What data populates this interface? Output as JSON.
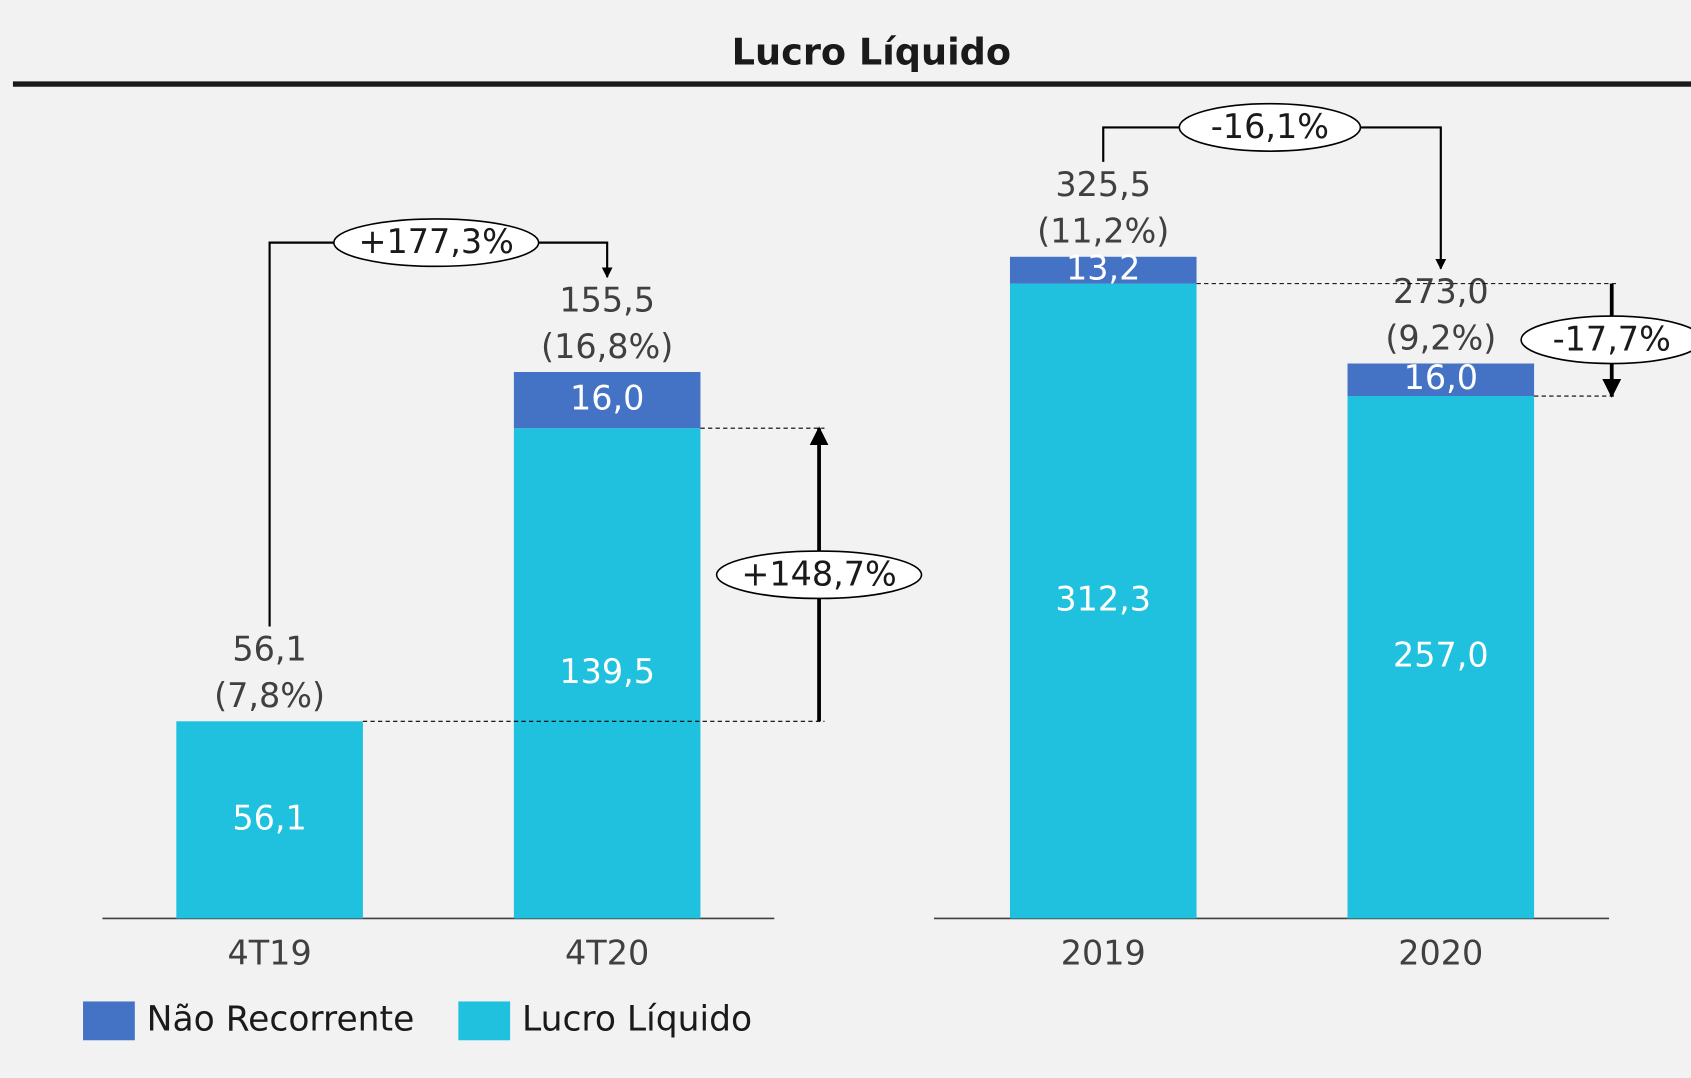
{
  "title": "Lucro Líquido",
  "chart_data": [
    {
      "type": "bar",
      "stacked": true,
      "categories": [
        "4T19",
        "4T20"
      ],
      "series": [
        {
          "name": "Lucro Líquido",
          "color": "#1fc1de",
          "values": [
            56.1,
            139.5
          ],
          "value_labels": [
            "56,1",
            "139,5"
          ]
        },
        {
          "name": "Não Recorrente",
          "color": "#4472c4",
          "values": [
            null,
            16.0
          ],
          "value_labels": [
            null,
            "16,0"
          ]
        }
      ],
      "totals": [
        56.1,
        155.5
      ],
      "total_labels": [
        "56,1",
        "155,5"
      ],
      "margin_labels": [
        "(7,8%)",
        "(16,8%)"
      ],
      "annotations": [
        "+177,3%",
        "+148,7%"
      ],
      "ylim": [
        0,
        200
      ],
      "legend": "bottom-left"
    },
    {
      "type": "bar",
      "stacked": true,
      "categories": [
        "2019",
        "2020"
      ],
      "series": [
        {
          "name": "Lucro Líquido",
          "color": "#1fc1de",
          "values": [
            312.3,
            257.0
          ],
          "value_labels": [
            "312,3",
            "257,0"
          ]
        },
        {
          "name": "Não Recorrente",
          "color": "#4472c4",
          "values": [
            13.2,
            16.0
          ],
          "value_labels": [
            "13,2",
            "16,0"
          ]
        }
      ],
      "totals": [
        325.5,
        273.0
      ],
      "total_labels": [
        "325,5",
        "273,0"
      ],
      "margin_labels": [
        "(11,2%)",
        "(9,2%)"
      ],
      "annotations": [
        "-16,1%",
        "-17,7%"
      ],
      "ylim": [
        0,
        350
      ]
    }
  ]
}
